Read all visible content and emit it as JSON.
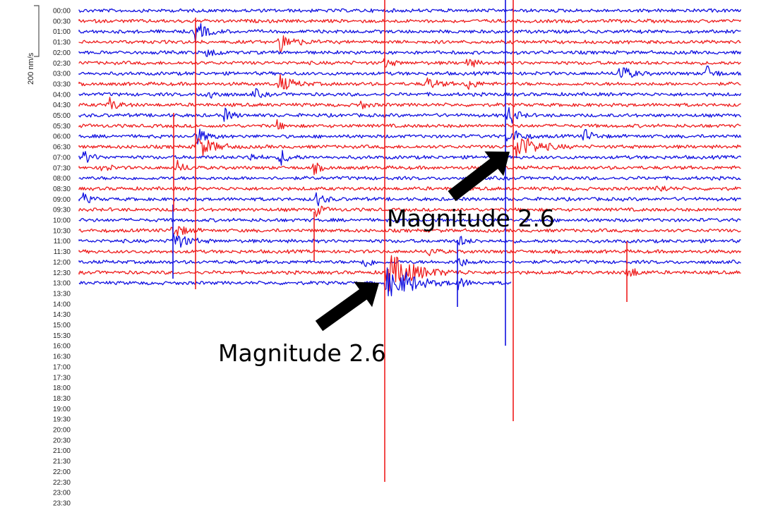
{
  "chart_data": {
    "type": "line",
    "title": "",
    "xlabel": "",
    "ylabel": "",
    "scale_label": "200 nm/s",
    "time_labels": [
      "00:00",
      "00:30",
      "01:00",
      "01:30",
      "02:00",
      "02:30",
      "03:00",
      "03:30",
      "04:00",
      "04:30",
      "05:00",
      "05:30",
      "06:00",
      "06:30",
      "07:00",
      "07:30",
      "08:00",
      "08:30",
      "09:00",
      "09:30",
      "10:00",
      "10:30",
      "11:00",
      "11:30",
      "12:00",
      "12:30",
      "13:00",
      "13:30",
      "14:00",
      "14:30",
      "15:00",
      "15:30",
      "16:00",
      "16:30",
      "17:00",
      "17:30",
      "18:00",
      "18:30",
      "19:00",
      "19:30",
      "20:00",
      "20:30",
      "21:00",
      "21:30",
      "22:00",
      "22:30",
      "23:00",
      "23:30"
    ],
    "trace_colors": [
      "#1010e0",
      "#ee1c1c"
    ],
    "recorded_through": "13:00",
    "annotations": [
      {
        "text": "Magnitude 2.6",
        "time": "06:30"
      },
      {
        "text": "Magnitude 2.6",
        "time": "13:00"
      }
    ]
  }
}
